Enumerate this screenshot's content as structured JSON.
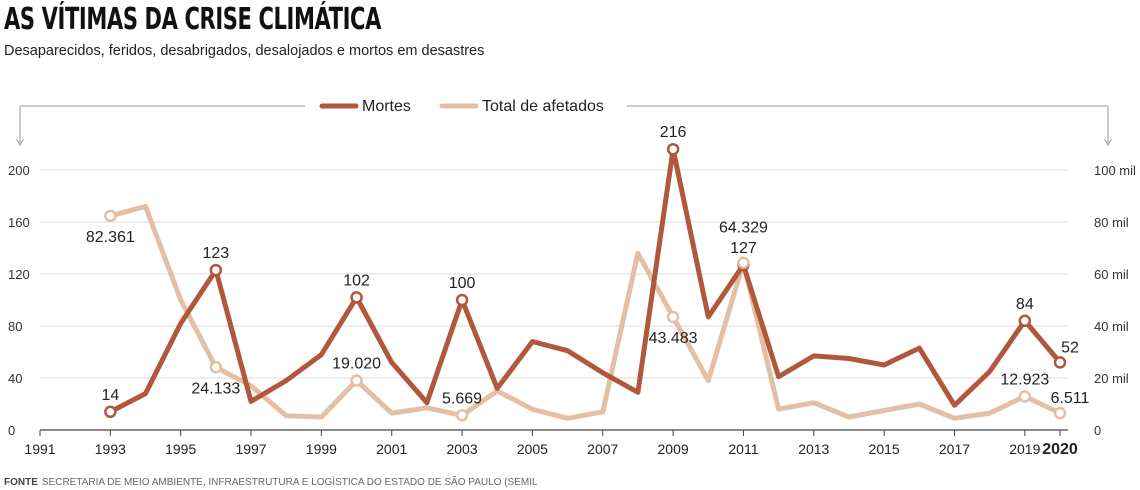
{
  "title": "AS VÍTIMAS DA CRISE CLIMÁTICA",
  "subtitle": "Desaparecidos, feridos, desabrigados, desalojados e mortos em desastres",
  "source": {
    "label": "FONTE",
    "text": "SECRETARIA DE MEIO AMBIENTE, INFRAESTRUTURA E LOGÍSTICA DO ESTADO DE SÃO PAULO (SEMIL"
  },
  "colors": {
    "mortes": "#B0573C",
    "afetados": "#E3BFA5",
    "grid": "#dddddd",
    "axis": "#444444"
  },
  "chart_data": {
    "type": "line",
    "title": "AS VÍTIMAS DA CRISE CLIMÁTICA",
    "subtitle": "Desaparecidos, feridos, desabrigados, desalojados e mortos em desastres",
    "x": [
      1993,
      1994,
      1995,
      1996,
      1997,
      1998,
      1999,
      2000,
      2001,
      2002,
      2003,
      2004,
      2005,
      2006,
      2007,
      2008,
      2009,
      2010,
      2011,
      2012,
      2013,
      2014,
      2015,
      2016,
      2017,
      2018,
      2019,
      2020
    ],
    "xlim": [
      1991,
      2020
    ],
    "xticks": [
      "1991",
      "1993",
      "1995",
      "1997",
      "1999",
      "2001",
      "2003",
      "2005",
      "2007",
      "2009",
      "2011",
      "2013",
      "2015",
      "2017",
      "2019",
      "2020"
    ],
    "y_left": {
      "range": [
        0,
        200
      ],
      "ticks": [
        "0",
        "40",
        "80",
        "120",
        "160",
        "200"
      ]
    },
    "y_right": {
      "range": [
        0,
        100000
      ],
      "ticks": [
        "0",
        "20 mil",
        "40 mil",
        "60 mil",
        "80 mil",
        "100 mil"
      ]
    },
    "legend": {
      "placement": "top-center"
    },
    "series": [
      {
        "name": "Mortes",
        "axis": "left",
        "values": [
          14,
          28,
          82,
          123,
          22,
          38,
          58,
          102,
          52,
          21,
          100,
          32,
          68,
          61,
          44,
          29,
          216,
          87,
          127,
          41,
          57,
          55,
          50,
          63,
          19,
          45,
          84,
          52
        ],
        "labels": [
          {
            "year": 1993,
            "value": 14,
            "text": "14",
            "pos": "above"
          },
          {
            "year": 1996,
            "value": 123,
            "text": "123",
            "pos": "above"
          },
          {
            "year": 2000,
            "value": 102,
            "text": "102",
            "pos": "above"
          },
          {
            "year": 2003,
            "value": 100,
            "text": "100",
            "pos": "above"
          },
          {
            "year": 2009,
            "value": 216,
            "text": "216",
            "pos": "above"
          },
          {
            "year": 2011,
            "value": 127,
            "text": "127",
            "pos": "above"
          },
          {
            "year": 2019,
            "value": 84,
            "text": "84",
            "pos": "above"
          },
          {
            "year": 2020,
            "value": 52,
            "text": "52",
            "pos": "aboveright"
          }
        ]
      },
      {
        "name": "Total de afetados",
        "axis": "right",
        "values": [
          82361,
          86000,
          50000,
          24133,
          17000,
          5500,
          5000,
          19020,
          6500,
          8500,
          5669,
          15000,
          8000,
          4500,
          7000,
          68000,
          43483,
          19000,
          64329,
          8000,
          10500,
          5000,
          7500,
          10000,
          4500,
          6500,
          12923,
          6511
        ],
        "labels": [
          {
            "year": 1993,
            "value": 82361,
            "text": "82.361",
            "pos": "below"
          },
          {
            "year": 1996,
            "value": 24133,
            "text": "24.133",
            "pos": "below"
          },
          {
            "year": 2000,
            "value": 19020,
            "text": "19.020",
            "pos": "above"
          },
          {
            "year": 2003,
            "value": 5669,
            "text": "5.669",
            "pos": "above"
          },
          {
            "year": 2009,
            "value": 43483,
            "text": "43.483",
            "pos": "below"
          },
          {
            "year": 2011,
            "value": 64329,
            "text": "64.329",
            "pos": "above2"
          },
          {
            "year": 2019,
            "value": 12923,
            "text": "12.923",
            "pos": "above"
          },
          {
            "year": 2020,
            "value": 6511,
            "text": "6.511",
            "pos": "aboveright"
          }
        ]
      }
    ]
  }
}
